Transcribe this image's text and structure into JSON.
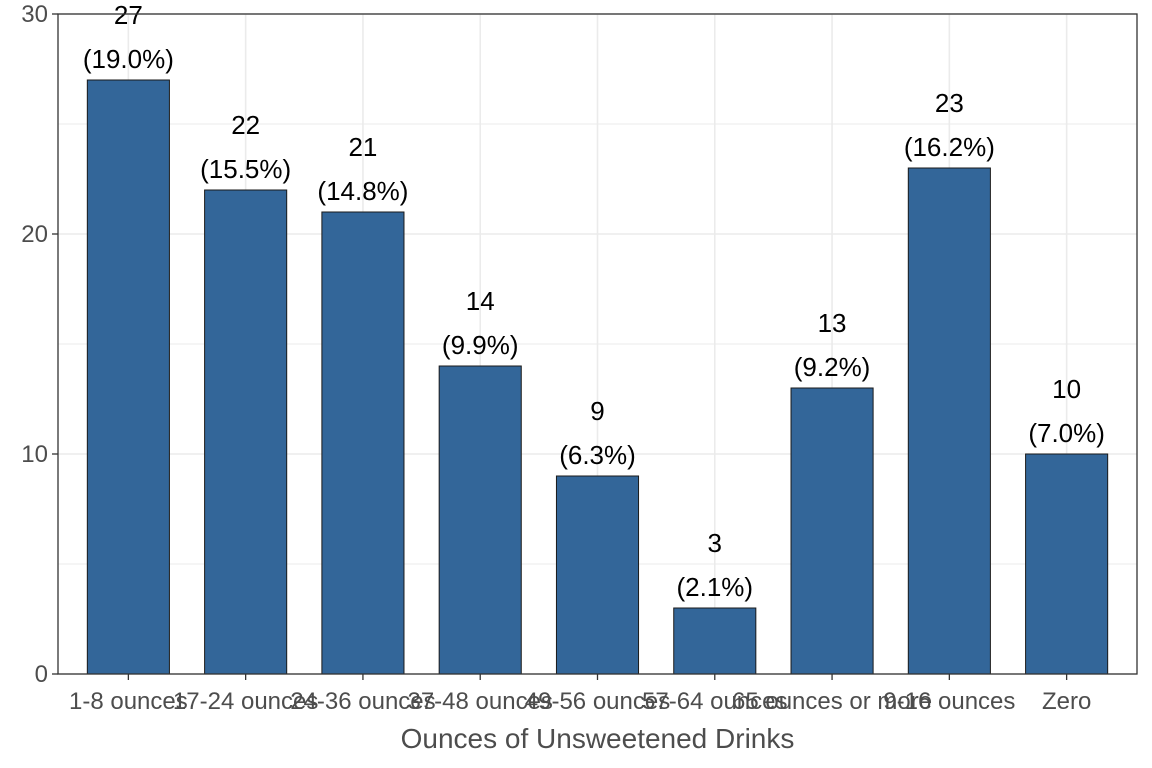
{
  "chart_data": {
    "type": "bar",
    "title": "",
    "xlabel": "Ounces of Unsweetened Drinks",
    "ylabel": "",
    "categories": [
      "1-8 ounces",
      "17-24 ounces",
      "24-36 ounces",
      "37-48 ounces",
      "49-56 ounces",
      "57-64 ounces",
      "65 ounces or more",
      "9-16 ounces",
      "Zero"
    ],
    "values": [
      27,
      22,
      21,
      14,
      9,
      3,
      13,
      23,
      10
    ],
    "percent_labels": [
      "(19.0%)",
      "(15.5%)",
      "(14.8%)",
      "(9.9%)",
      "(6.3%)",
      "(2.1%)",
      "(9.2%)",
      "(16.2%)",
      "(7.0%)"
    ],
    "count_labels": [
      "27",
      "22",
      "21",
      "14",
      "9",
      "3",
      "13",
      "23",
      "10"
    ],
    "ylim": [
      0,
      30
    ],
    "yticks": [
      0,
      10,
      20,
      30
    ],
    "grid": true,
    "bar_color": "#336699",
    "legend": "none"
  }
}
